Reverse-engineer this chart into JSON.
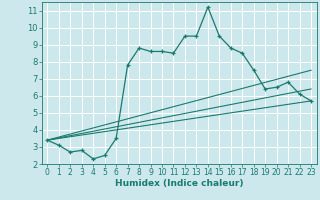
{
  "title": "",
  "xlabel": "Humidex (Indice chaleur)",
  "bg_color": "#cce8ed",
  "grid_color": "#ffffff",
  "line_color": "#1a7a6e",
  "xlim": [
    -0.5,
    23.5
  ],
  "ylim": [
    2,
    11.5
  ],
  "xticks": [
    0,
    1,
    2,
    3,
    4,
    5,
    6,
    7,
    8,
    9,
    10,
    11,
    12,
    13,
    14,
    15,
    16,
    17,
    18,
    19,
    20,
    21,
    22,
    23
  ],
  "yticks": [
    2,
    3,
    4,
    5,
    6,
    7,
    8,
    9,
    10,
    11
  ],
  "main_line": {
    "x": [
      0,
      1,
      2,
      3,
      4,
      5,
      6,
      7,
      8,
      9,
      10,
      11,
      12,
      13,
      14,
      15,
      16,
      17,
      18,
      19,
      20,
      21,
      22,
      23
    ],
    "y": [
      3.4,
      3.1,
      2.7,
      2.8,
      2.3,
      2.5,
      3.5,
      7.8,
      8.8,
      8.6,
      8.6,
      8.5,
      9.5,
      9.5,
      11.2,
      9.5,
      8.8,
      8.5,
      7.5,
      6.4,
      6.5,
      6.8,
      6.1,
      5.7
    ]
  },
  "line2": {
    "x": [
      0,
      23
    ],
    "y": [
      3.4,
      5.7
    ]
  },
  "line3": {
    "x": [
      0,
      23
    ],
    "y": [
      3.4,
      6.4
    ]
  },
  "line4": {
    "x": [
      0,
      23
    ],
    "y": [
      3.4,
      7.5
    ]
  }
}
